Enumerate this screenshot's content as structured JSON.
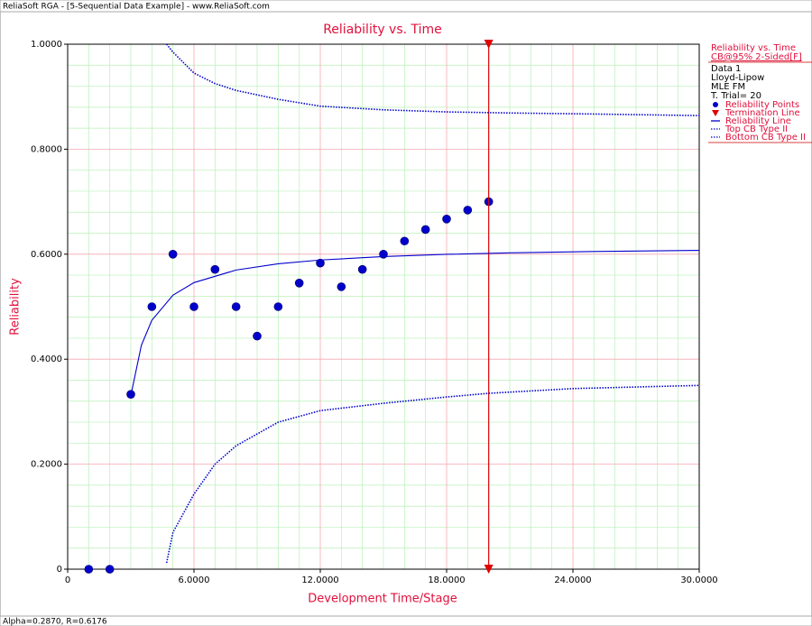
{
  "window_title": "ReliaSoft RGA - [5-Sequential Data Example] - www.ReliaSoft.com",
  "status_bar": "Alpha=0.2870, R=0.6176",
  "chart_data": {
    "type": "line",
    "title": "Reliability vs. Time",
    "x_label": "Development Time/Stage",
    "y_label": "Reliability",
    "xlim": [
      0,
      30
    ],
    "ylim": [
      0,
      1
    ],
    "xticks": [
      0,
      {
        "value": 6,
        "label": "6.0000"
      },
      {
        "value": 12,
        "label": "12.0000"
      },
      {
        "value": 18,
        "label": "18.0000"
      },
      {
        "value": 24,
        "label": "24.0000"
      },
      {
        "value": 30,
        "label": "30.0000"
      }
    ],
    "yticks": [
      0,
      {
        "value": 0.2,
        "label": "0.2000"
      },
      {
        "value": 0.4,
        "label": "0.4000"
      },
      {
        "value": 0.6,
        "label": "0.6000"
      },
      {
        "value": 0.8,
        "label": "0.8000"
      },
      {
        "value": 1,
        "label": "1.0000"
      }
    ],
    "grid": true,
    "minor_grid_divisions": [
      6,
      5
    ],
    "legend_header": [
      "Reliability vs. Time",
      "CB@95% 2-Sided[F]"
    ],
    "legend_info": [
      "Data 1",
      "Lloyd-Lipow",
      "MLE FM",
      "T. Trial= 20"
    ],
    "series": [
      {
        "name": "Reliability Points",
        "color": "#0000cc",
        "style": "markers",
        "x": [
          1,
          2,
          3,
          4,
          5,
          6,
          7,
          8,
          9,
          10,
          11,
          12,
          13,
          14,
          15,
          16,
          17,
          18,
          19,
          20
        ],
        "values": [
          0,
          0,
          0.333,
          0.5,
          0.6,
          0.5,
          0.571,
          0.5,
          0.444,
          0.5,
          0.545,
          0.583,
          0.538,
          0.571,
          0.6,
          0.625,
          0.647,
          0.667,
          0.684,
          0.7
        ]
      },
      {
        "name": "Termination Line",
        "color": "#e00000",
        "style": "vline",
        "x": [
          20
        ]
      },
      {
        "name": "Reliability Line",
        "color": "#0000cc",
        "style": "solid",
        "x": [
          3,
          3.5,
          4,
          5,
          6,
          8,
          10,
          12,
          15,
          18,
          21,
          25,
          30
        ],
        "values": [
          0.3306,
          0.4263,
          0.4741,
          0.5219,
          0.5459,
          0.5698,
          0.5817,
          0.5889,
          0.5955,
          0.5997,
          0.6025,
          0.6051,
          0.6073
        ]
      },
      {
        "name": "Top CB Type II",
        "color": "#0000cc",
        "style": "dotted",
        "x": [
          4.7,
          5,
          6,
          7,
          8,
          10,
          12,
          15,
          18,
          21,
          25,
          30
        ],
        "values": [
          1,
          0.985,
          0.945,
          0.925,
          0.912,
          0.895,
          0.882,
          0.875,
          0.871,
          0.869,
          0.867,
          0.864
        ]
      },
      {
        "name": "Bottom CB Type II",
        "color": "#0000cc",
        "style": "dotted",
        "x": [
          4.7,
          5,
          6,
          7,
          8,
          10,
          12,
          15,
          18,
          20,
          24,
          30
        ],
        "values": [
          0.012,
          0.07,
          0.143,
          0.2,
          0.235,
          0.28,
          0.302,
          0.316,
          0.328,
          0.335,
          0.344,
          0.35
        ]
      }
    ]
  }
}
